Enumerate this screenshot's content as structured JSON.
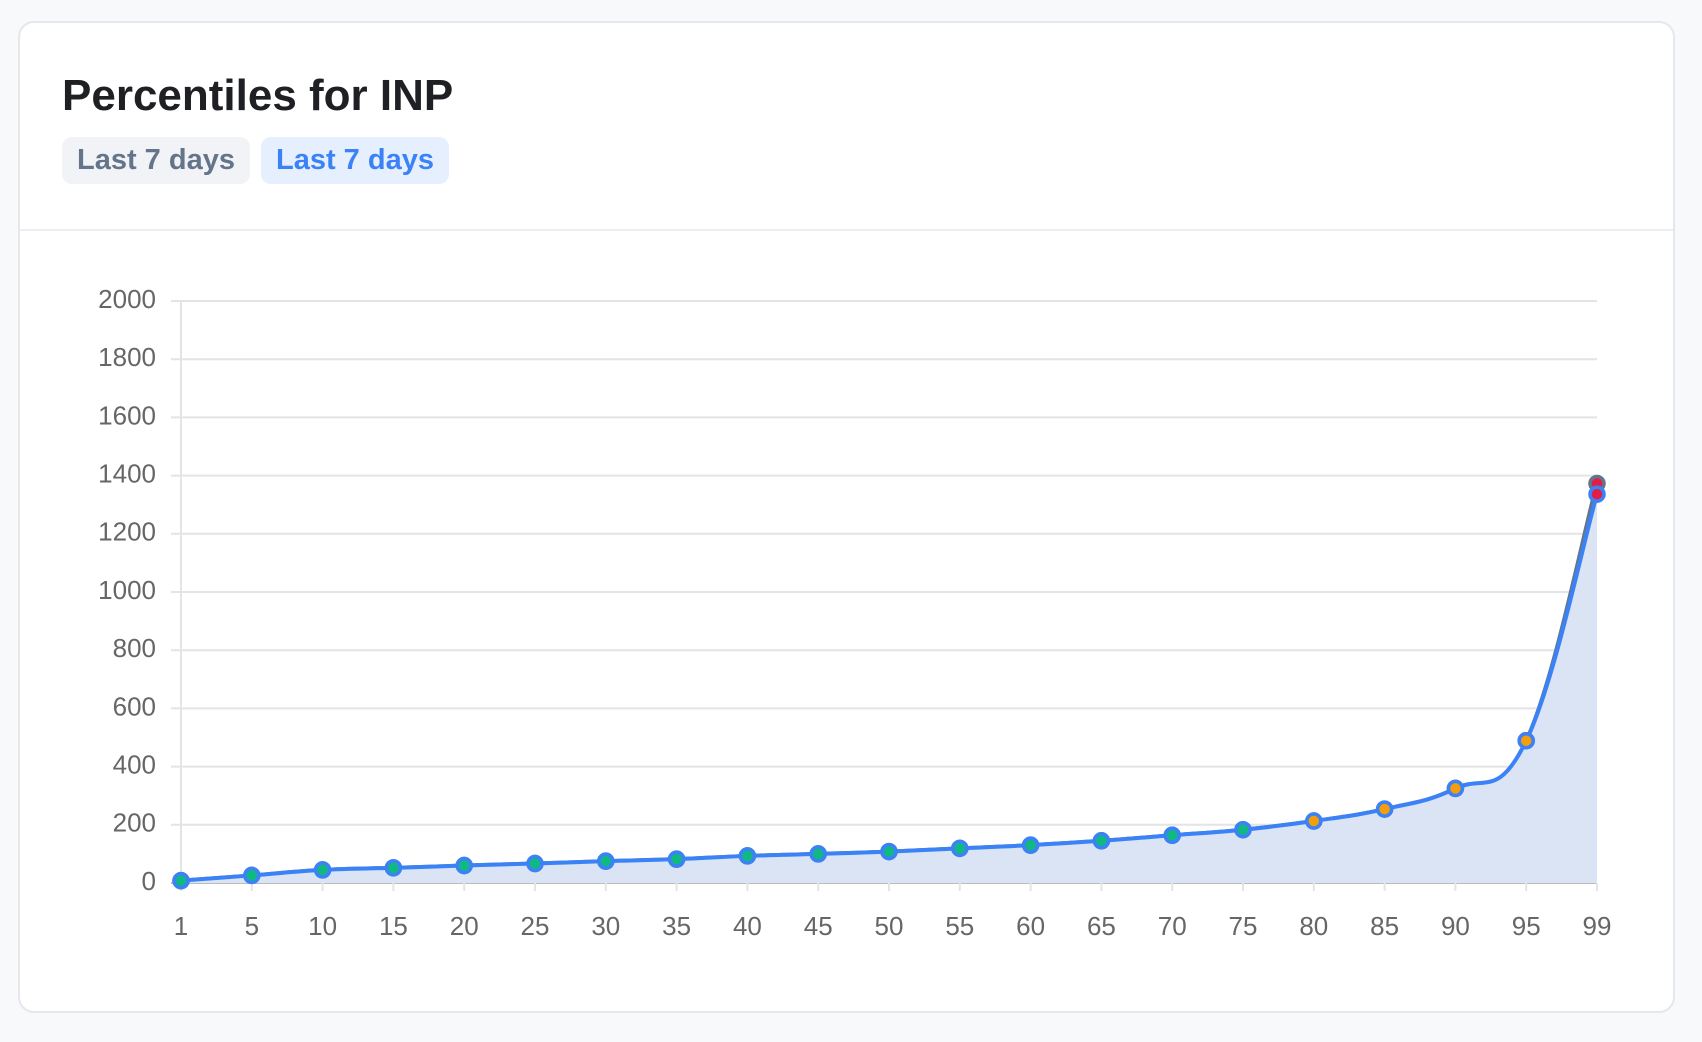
{
  "chart_data": {
    "type": "line",
    "title": "Percentiles for INP",
    "categories": [
      1,
      5,
      10,
      15,
      20,
      25,
      30,
      35,
      40,
      45,
      50,
      55,
      60,
      65,
      70,
      75,
      80,
      85,
      90,
      95,
      99
    ],
    "series": [
      {
        "name": "Last 7 days",
        "color": "#64748b",
        "values": [
          8,
          26,
          45,
          52,
          60,
          67,
          75,
          82,
          93,
          100,
          108,
          119,
          130,
          145,
          164,
          183,
          213,
          254,
          325,
          489,
          1373
        ],
        "point_fill": [
          "#10b981",
          "#10b981",
          "#10b981",
          "#10b981",
          "#10b981",
          "#10b981",
          "#10b981",
          "#10b981",
          "#10b981",
          "#10b981",
          "#10b981",
          "#10b981",
          "#10b981",
          "#10b981",
          "#10b981",
          "#10b981",
          "#f59e0b",
          "#f59e0b",
          "#f59e0b",
          "#f59e0b",
          "#e11d48"
        ]
      },
      {
        "name": "Last 7 days",
        "color": "#3b82f6",
        "area": "#dbe4f5",
        "values": [
          8,
          26,
          45,
          52,
          60,
          67,
          75,
          82,
          93,
          100,
          108,
          119,
          130,
          145,
          164,
          183,
          213,
          254,
          325,
          489,
          1336
        ],
        "point_fill": [
          "#10b981",
          "#10b981",
          "#10b981",
          "#10b981",
          "#10b981",
          "#10b981",
          "#10b981",
          "#10b981",
          "#10b981",
          "#10b981",
          "#10b981",
          "#10b981",
          "#10b981",
          "#10b981",
          "#10b981",
          "#10b981",
          "#f59e0b",
          "#f59e0b",
          "#f59e0b",
          "#f59e0b",
          "#e11d48"
        ]
      }
    ],
    "ylim": [
      0,
      2000
    ],
    "yticks": [
      0,
      200,
      400,
      600,
      800,
      1000,
      1200,
      1400,
      1600,
      1800,
      2000
    ],
    "grid": true
  }
}
